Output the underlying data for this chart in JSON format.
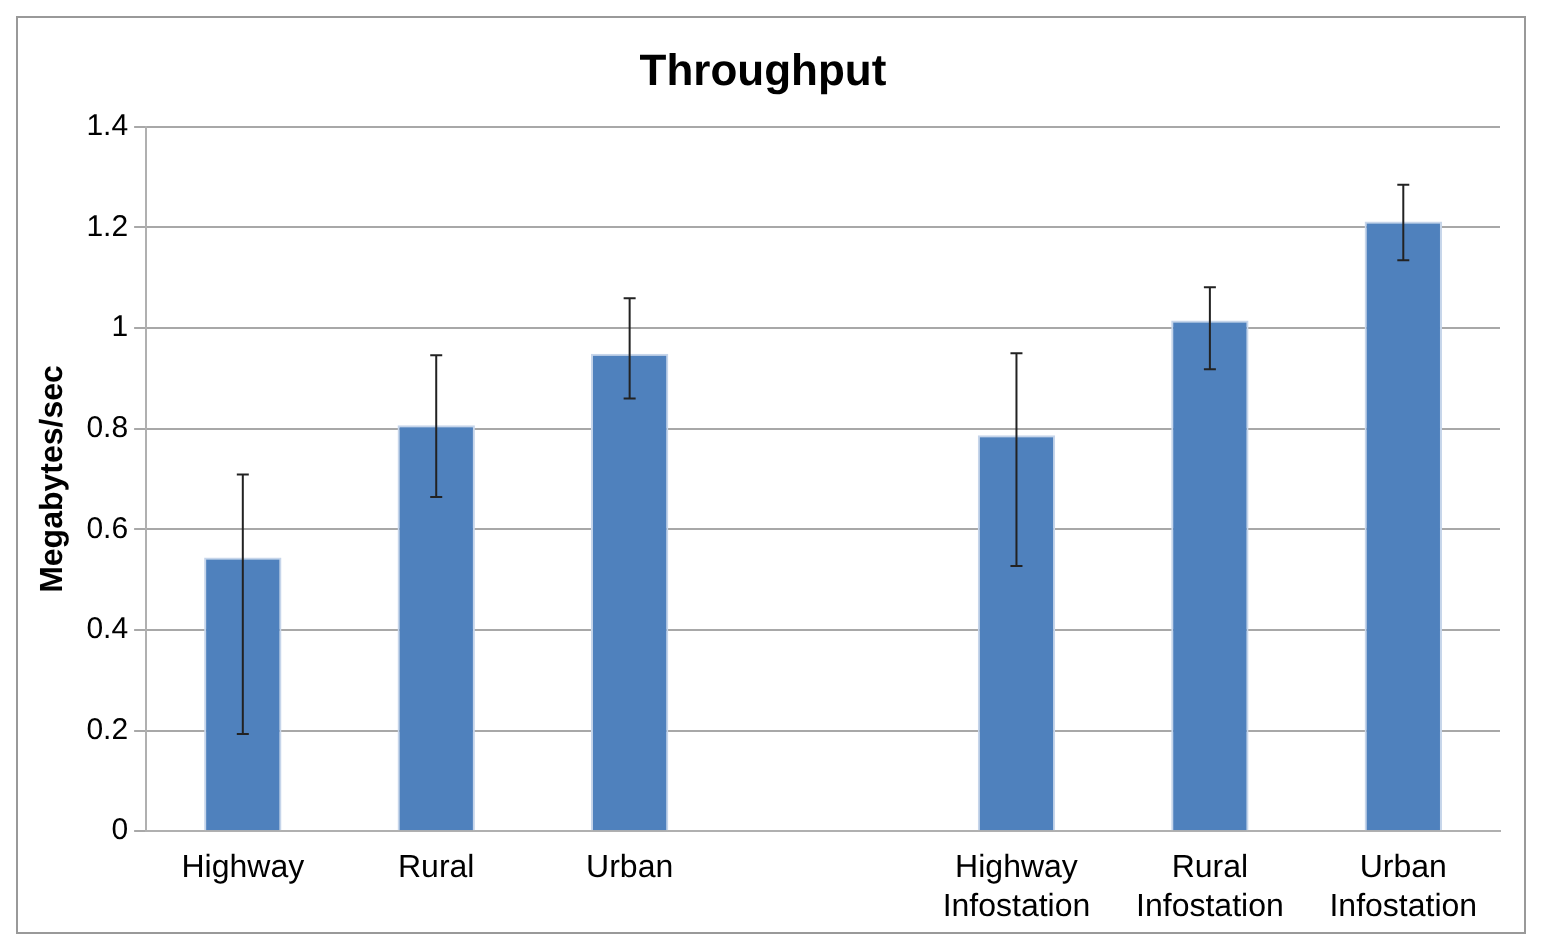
{
  "chart_data": {
    "type": "bar",
    "title": "Throughput",
    "ylabel": "Megabytes/sec",
    "categories": [
      "Highway",
      "Rural",
      "Urban",
      null,
      "Highway Infostation",
      "Rural Infostation",
      "Urban Infostation"
    ],
    "values": [
      0.544,
      0.807,
      0.949,
      null,
      0.787,
      1.015,
      1.212
    ],
    "errors": [
      [
        0.193,
        0.709
      ],
      [
        0.664,
        0.946
      ],
      [
        0.86,
        1.059
      ],
      null,
      [
        0.527,
        0.95
      ],
      [
        0.918,
        1.081
      ],
      [
        1.135,
        1.285
      ]
    ],
    "color": "#4f81bd",
    "ylim": [
      0,
      1.4
    ],
    "yticks": [
      0,
      0.2,
      0.4,
      0.6,
      0.8,
      1,
      1.2,
      1.4
    ],
    "grid": "y",
    "legend": false
  }
}
